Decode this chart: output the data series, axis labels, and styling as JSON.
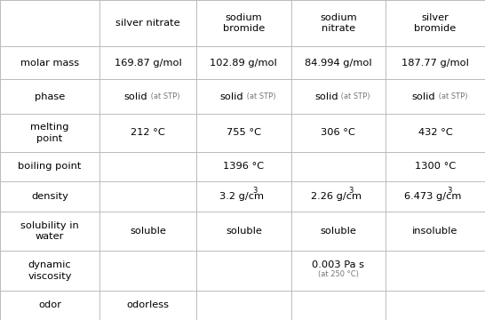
{
  "col_headers": [
    "",
    "silver nitrate",
    "sodium\nbromide",
    "sodium\nnitrate",
    "silver\nbromide"
  ],
  "rows": [
    {
      "label": "molar mass",
      "values": [
        "169.87 g/mol",
        "102.89 g/mol",
        "84.994 g/mol",
        "187.77 g/mol"
      ]
    },
    {
      "label": "phase",
      "values": [
        "phase_solid",
        "phase_solid",
        "phase_solid",
        "phase_solid"
      ]
    },
    {
      "label": "melting\npoint",
      "values": [
        "212 °C",
        "755 °C",
        "306 °C",
        "432 °C"
      ]
    },
    {
      "label": "boiling point",
      "values": [
        "",
        "1396 °C",
        "",
        "1300 °C"
      ]
    },
    {
      "label": "density",
      "values": [
        "",
        "density_3.2",
        "density_2.26",
        "density_6.473"
      ]
    },
    {
      "label": "solubility in\nwater",
      "values": [
        "soluble",
        "soluble",
        "soluble",
        "insoluble"
      ]
    },
    {
      "label": "dynamic\nviscosity",
      "values": [
        "",
        "",
        "visc_0.003",
        ""
      ]
    },
    {
      "label": "odor",
      "values": [
        "odorless",
        "",
        "",
        ""
      ]
    }
  ],
  "col_starts": [
    0.0,
    0.205,
    0.405,
    0.6,
    0.795
  ],
  "row_heights_raw": [
    1.4,
    1.0,
    1.05,
    1.15,
    0.9,
    0.9,
    1.2,
    1.2,
    0.9
  ],
  "background_color": "#ffffff",
  "line_color": "#bbbbbb",
  "text_color": "#000000",
  "small_text_color": "#777777",
  "header_fs": 8.2,
  "data_fs": 8.2,
  "small_fs": 6.0,
  "label_fs": 8.2
}
